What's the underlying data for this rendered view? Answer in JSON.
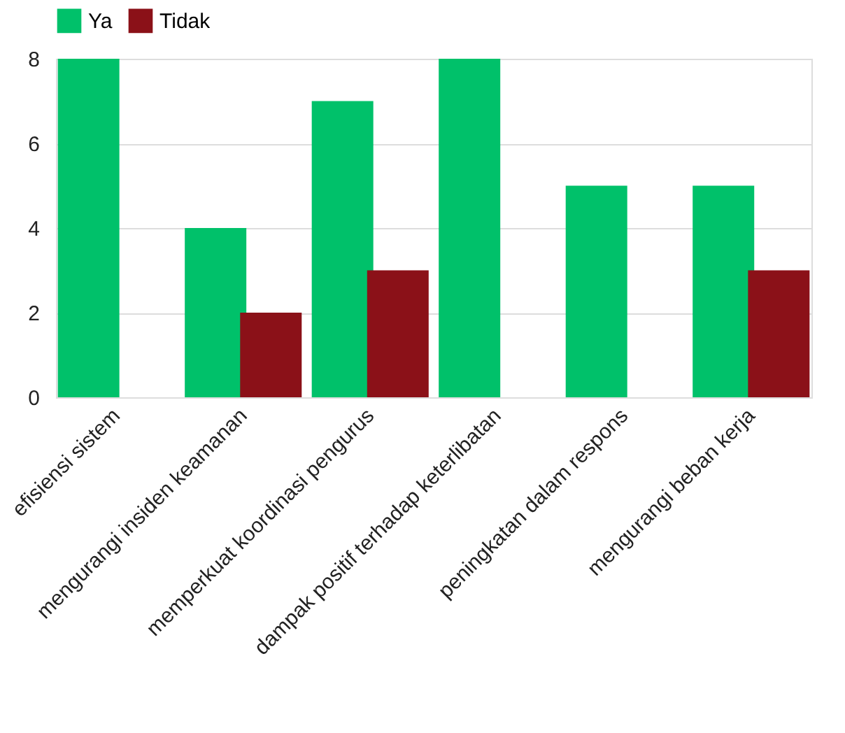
{
  "chart_data": {
    "type": "bar",
    "categories": [
      "efisiensi sistem",
      "mengurangi insiden keamanan",
      "memperkuat koordinasi pengurus",
      "dampak positif terhadap keterlibatan",
      "peningkatan dalam respons",
      "mengurangi beban kerja"
    ],
    "series": [
      {
        "name": "Ya",
        "color": "#00c16a",
        "values": [
          8,
          4,
          7,
          8,
          5,
          5
        ]
      },
      {
        "name": "Tidak",
        "color": "#8b1118",
        "values": [
          null,
          2,
          3,
          null,
          null,
          3
        ]
      }
    ],
    "ylim": [
      0,
      8
    ],
    "yticks": [
      0,
      2,
      4,
      6,
      8
    ],
    "grid": "y",
    "legend": "top"
  }
}
